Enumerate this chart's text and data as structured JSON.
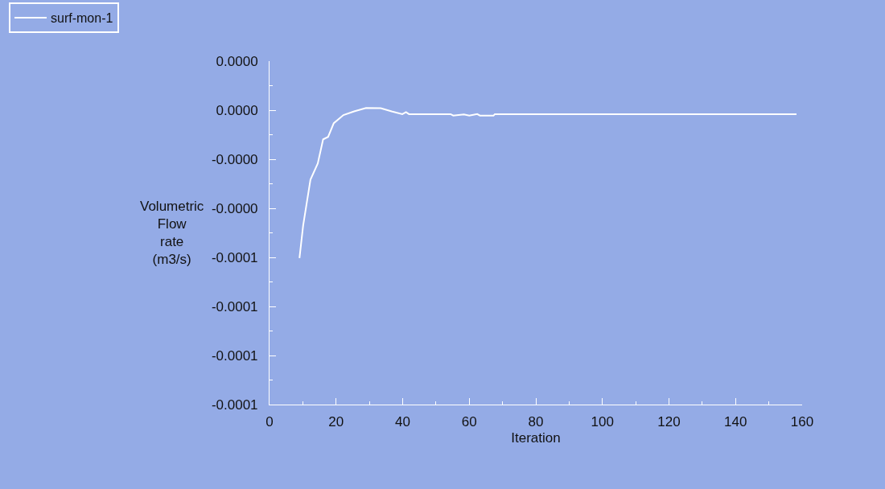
{
  "chart_data": {
    "type": "line",
    "xlabel": "Iteration",
    "ylabel": "Volumetric\nFlow\nrate\n(m3/s)",
    "x": [
      9,
      10.1,
      12.3,
      14.5,
      16.1,
      17.6,
      19.3,
      22.2,
      25.4,
      29,
      33.4,
      36.7,
      39.9,
      41,
      41.9,
      54.4,
      55.2,
      58.4,
      60,
      62.4,
      63.2,
      67.3,
      67.7,
      158.3
    ],
    "series": [
      {
        "name": "surf-mon-1",
        "color": "#ffffff",
        "values": [
          -6.03e-05,
          -4.7e-05,
          -2.83e-05,
          -2.17e-05,
          -1.19e-05,
          -1.09e-05,
          -5.3e-06,
          -2e-06,
          -5e-07,
          9e-07,
          8e-07,
          -5e-07,
          -1.6e-06,
          -8e-07,
          -1.6e-06,
          -1.6e-06,
          -2.2e-06,
          -1.7e-06,
          -2.2e-06,
          -1.6e-06,
          -2.2e-06,
          -2.2e-06,
          -1.6e-06,
          -1.6e-06
        ]
      }
    ],
    "xlim": [
      0,
      160
    ],
    "xticks": [
      0,
      {
        "value": 10,
        "label": null
      },
      20,
      {
        "value": 30,
        "label": null
      },
      40,
      {
        "value": 50,
        "label": null
      },
      60,
      {
        "value": 70,
        "label": null
      },
      80,
      {
        "value": 90,
        "label": null
      },
      100,
      {
        "value": 110,
        "label": null
      },
      120,
      {
        "value": 130,
        "label": null
      },
      140,
      {
        "value": 150,
        "label": null
      },
      160
    ],
    "ylim": [
      -0.00012,
      2e-05
    ],
    "yticks": [
      {
        "value": 2e-05,
        "label": "0.0000"
      },
      {
        "value": 1e-05,
        "label": null
      },
      {
        "value": 0,
        "label": "0.0000"
      },
      {
        "value": -1e-05,
        "label": null
      },
      {
        "value": -2e-05,
        "label": "-0.0000"
      },
      {
        "value": -3e-05,
        "label": null
      },
      {
        "value": -4e-05,
        "label": "-0.0000"
      },
      {
        "value": -5e-05,
        "label": null
      },
      {
        "value": -6e-05,
        "label": "-0.0001"
      },
      {
        "value": -7e-05,
        "label": null
      },
      {
        "value": -8e-05,
        "label": "-0.0001"
      },
      {
        "value": -9e-05,
        "label": null
      },
      {
        "value": -0.0001,
        "label": "-0.0001"
      },
      {
        "value": -0.00011,
        "label": null
      },
      {
        "value": -0.00012,
        "label": "-0.0001"
      }
    ],
    "grid": false,
    "legend": "top left",
    "marker": "none",
    "line_style": "solid"
  }
}
